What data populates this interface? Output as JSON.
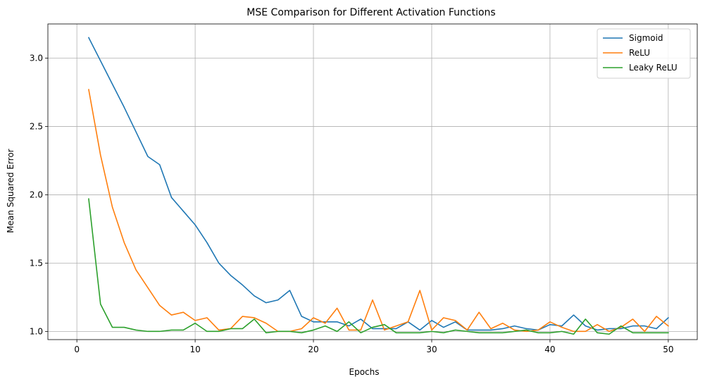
{
  "chart_data": {
    "type": "line",
    "title": "MSE Comparison for Different Activation Functions",
    "xlabel": "Epochs",
    "ylabel": "Mean Squared Error",
    "xlim": [
      -2.45,
      52.45
    ],
    "ylim": [
      0.94,
      3.25
    ],
    "xticks": [
      0,
      10,
      20,
      30,
      40,
      50
    ],
    "yticks": [
      1.0,
      1.5,
      2.0,
      2.5,
      3.0
    ],
    "ytick_labels": [
      "1.0",
      "1.5",
      "2.0",
      "2.5",
      "3.0"
    ],
    "xtick_labels": [
      "0",
      "10",
      "20",
      "30",
      "40",
      "50"
    ],
    "grid": true,
    "legend_position": "upper right",
    "x": [
      1,
      2,
      3,
      4,
      5,
      6,
      7,
      8,
      9,
      10,
      11,
      12,
      13,
      14,
      15,
      16,
      17,
      18,
      19,
      20,
      21,
      22,
      23,
      24,
      25,
      26,
      27,
      28,
      29,
      30,
      31,
      32,
      33,
      34,
      35,
      36,
      37,
      38,
      39,
      40,
      41,
      42,
      43,
      44,
      45,
      46,
      47,
      48,
      49,
      50
    ],
    "series": [
      {
        "name": "Sigmoid",
        "color": "#1f77b4",
        "values": [
          3.15,
          2.98,
          2.81,
          2.64,
          2.46,
          2.28,
          2.22,
          1.98,
          1.88,
          1.78,
          1.65,
          1.5,
          1.41,
          1.34,
          1.26,
          1.21,
          1.23,
          1.3,
          1.11,
          1.07,
          1.07,
          1.07,
          1.04,
          1.09,
          1.02,
          1.02,
          1.02,
          1.07,
          1.01,
          1.08,
          1.03,
          1.07,
          1.01,
          1.01,
          1.01,
          1.02,
          1.04,
          1.02,
          1.01,
          1.05,
          1.04,
          1.12,
          1.04,
          1.01,
          1.02,
          1.02,
          1.04,
          1.04,
          1.02,
          1.1
        ]
      },
      {
        "name": "ReLU",
        "color": "#ff7f0e",
        "values": [
          2.77,
          2.29,
          1.91,
          1.65,
          1.45,
          1.32,
          1.19,
          1.12,
          1.14,
          1.08,
          1.1,
          1.01,
          1.02,
          1.11,
          1.1,
          1.06,
          1.0,
          1.0,
          1.02,
          1.1,
          1.06,
          1.17,
          1.01,
          1.01,
          1.23,
          1.01,
          1.04,
          1.07,
          1.3,
          1.01,
          1.1,
          1.08,
          1.01,
          1.14,
          1.02,
          1.06,
          1.01,
          1.0,
          1.01,
          1.07,
          1.03,
          1.0,
          1.0,
          1.05,
          1.0,
          1.03,
          1.09,
          1.0,
          1.11,
          1.04
        ]
      },
      {
        "name": "Leaky ReLU",
        "color": "#2ca02c",
        "values": [
          1.97,
          1.2,
          1.03,
          1.03,
          1.01,
          1.0,
          1.0,
          1.01,
          1.01,
          1.06,
          1.0,
          1.0,
          1.02,
          1.02,
          1.09,
          0.99,
          1.0,
          1.0,
          0.99,
          1.01,
          1.04,
          1.0,
          1.07,
          0.99,
          1.03,
          1.05,
          0.99,
          0.99,
          0.99,
          1.0,
          0.99,
          1.01,
          1.0,
          0.99,
          0.99,
          0.99,
          1.0,
          1.01,
          0.99,
          0.99,
          1.0,
          0.98,
          1.09,
          0.99,
          0.98,
          1.04,
          0.99,
          0.99,
          0.99,
          0.99
        ]
      }
    ]
  }
}
